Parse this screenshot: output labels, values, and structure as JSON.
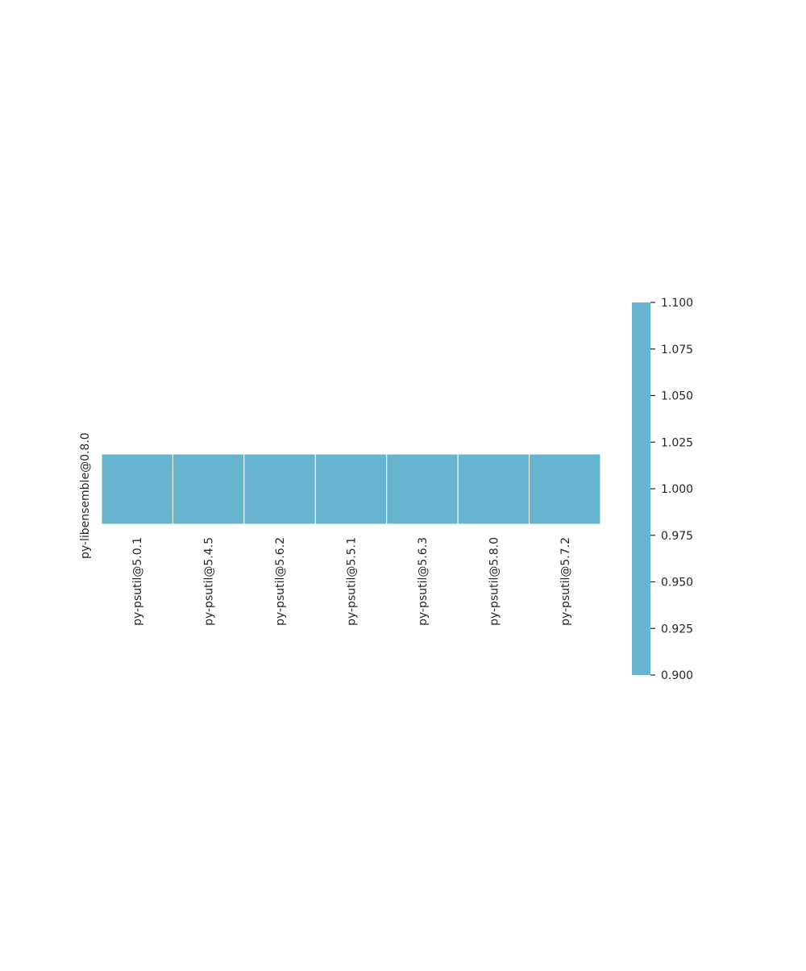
{
  "chart_data": {
    "type": "heatmap",
    "title": "",
    "xlabel": "",
    "ylabel": "",
    "x_categories": [
      "py-psutil@5.0.1",
      "py-psutil@5.4.5",
      "py-psutil@5.6.2",
      "py-psutil@5.5.1",
      "py-psutil@5.6.3",
      "py-psutil@5.8.0",
      "py-psutil@5.7.2"
    ],
    "y_categories": [
      "py-libensemble@0.8.0"
    ],
    "values": [
      [
        1,
        1,
        1,
        1,
        1,
        1,
        1
      ]
    ],
    "cell_color": "#66b4cd",
    "colorbar": {
      "min": 0.9,
      "max": 1.1,
      "ticks": [
        "0.900",
        "0.925",
        "0.950",
        "0.975",
        "1.000",
        "1.025",
        "1.050",
        "1.075",
        "1.100"
      ],
      "color": "#66b4cd"
    },
    "grid": false,
    "legend": "right"
  }
}
